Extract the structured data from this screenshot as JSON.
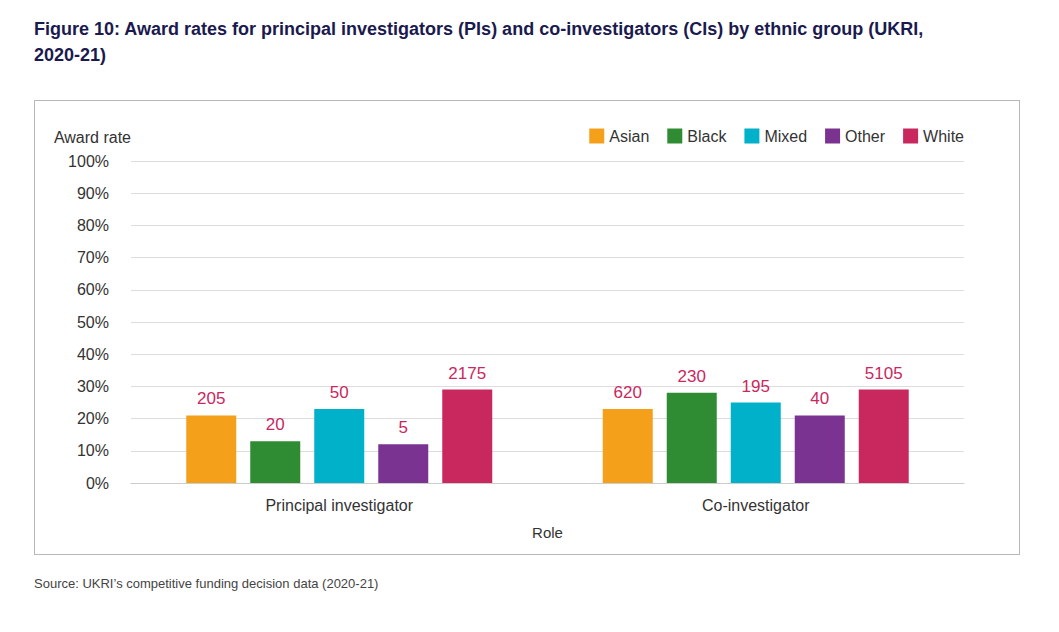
{
  "chart_data": {
    "type": "bar",
    "title": "Figure 10: Award rates for principal investigators (PIs) and co-investigators (CIs) by ethnic group (UKRI, 2020-21)",
    "source": "Source: UKRI’s competitive funding decision data (2020-21)",
    "x_label": "Role",
    "y_label": "Award rate",
    "categories": [
      "Principal investigator",
      "Co-investigator"
    ],
    "series": [
      {
        "name": "Asian",
        "color": "#f5a01a",
        "values": [
          21,
          23
        ],
        "counts": [
          205,
          620
        ]
      },
      {
        "name": "Black",
        "color": "#2f8c33",
        "values": [
          13,
          28
        ],
        "counts": [
          20,
          230
        ]
      },
      {
        "name": "Mixed",
        "color": "#00b1c9",
        "values": [
          23,
          25
        ],
        "counts": [
          50,
          195
        ]
      },
      {
        "name": "Other",
        "color": "#7a3391",
        "values": [
          12,
          21
        ],
        "counts": [
          5,
          40
        ]
      },
      {
        "name": "White",
        "color": "#c9285f",
        "values": [
          29,
          29
        ],
        "counts": [
          2175,
          5105
        ]
      }
    ],
    "ylim": [
      0,
      100
    ],
    "yticks": [
      {
        "value": 0,
        "label": "0%"
      },
      {
        "value": 10,
        "label": "10%"
      },
      {
        "value": 20,
        "label": "20%"
      },
      {
        "value": 30,
        "label": "30%"
      },
      {
        "value": 40,
        "label": "40%"
      },
      {
        "value": 50,
        "label": "50%"
      },
      {
        "value": 60,
        "label": "60%"
      },
      {
        "value": 70,
        "label": "70%"
      },
      {
        "value": 80,
        "label": "80%"
      },
      {
        "value": 90,
        "label": "90%"
      },
      {
        "value": 100,
        "label": "100%"
      }
    ],
    "grid": true,
    "legend": "top-right"
  }
}
